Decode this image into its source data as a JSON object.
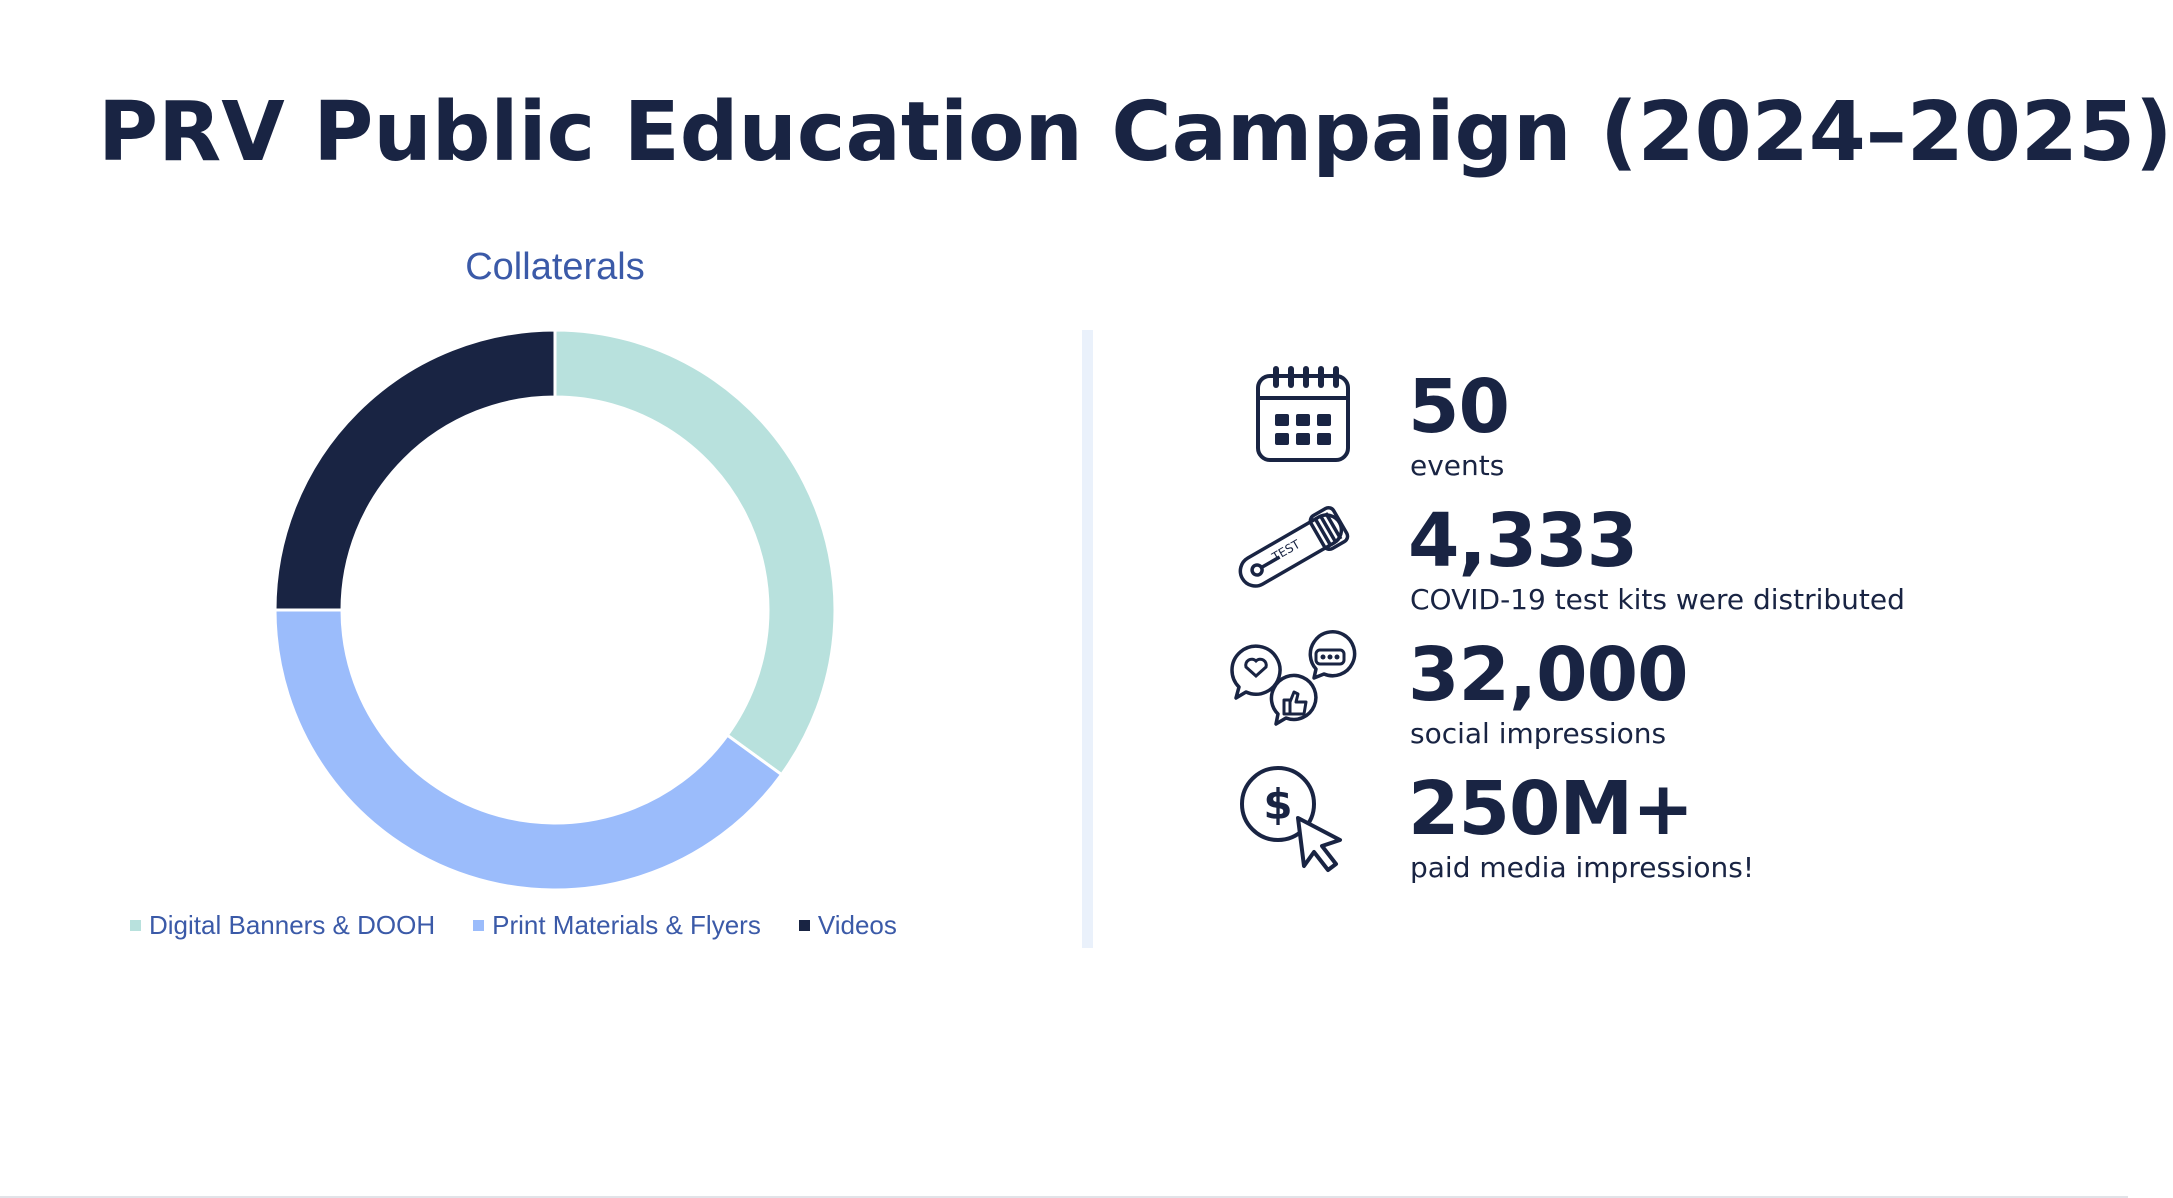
{
  "title": "PRV Public Education Campaign (2024–2025)",
  "chart_data": {
    "type": "pie",
    "subtype": "donut",
    "title": "Collaterals",
    "categories": [
      "Digital Banners & DOOH",
      "Print Materials & Flyers",
      "Videos"
    ],
    "values": [
      35,
      40,
      25
    ],
    "colors": [
      "#b8e1dd",
      "#9bbcfb",
      "#192443"
    ],
    "legend_position": "bottom"
  },
  "stats": [
    {
      "value": "50",
      "caption": "events",
      "icon": "calendar-icon"
    },
    {
      "value": "4,333",
      "caption": "COVID-19 test kits were distributed",
      "icon": "test-kit-icon",
      "icon_text": "TEST"
    },
    {
      "value": "32,000",
      "caption": "social impressions",
      "icon": "social-reactions-icon"
    },
    {
      "value": "250M+",
      "caption": "paid media impressions!",
      "icon": "paid-media-cursor-icon"
    }
  ],
  "colors": {
    "navy": "#192443",
    "accent_blue": "#3b5aa8",
    "divider": "#eaf1fb"
  }
}
